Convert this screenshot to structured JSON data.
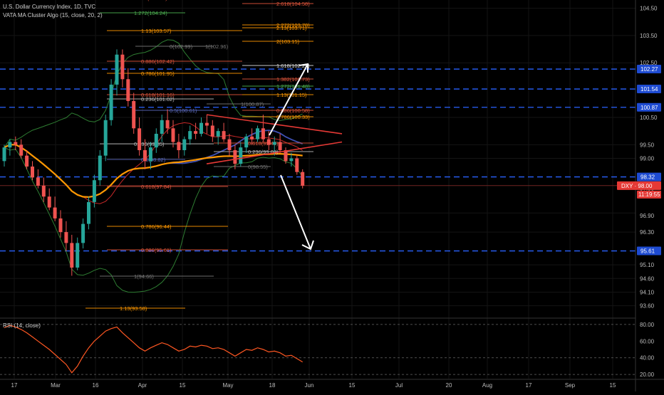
{
  "header": {
    "title": "U.S. Dollar Currency Index, 1D, TVC",
    "indicator": "VATA MA Cluster Algo (15, close, 20, 2)"
  },
  "rsi_panel": {
    "label": "RSI (14, close)",
    "ticks": [
      "80.00",
      "60.00",
      "40.00",
      "20.00"
    ]
  },
  "price_axis": {
    "ticks": [
      "104.50",
      "103.50",
      "102.50",
      "100.50",
      "99.50",
      "99.00",
      "97.90",
      "96.90",
      "96.30",
      "95.10",
      "94.60",
      "94.10",
      "93.60"
    ],
    "horizontal_levels": [
      "102.27",
      "101.54",
      "100.87",
      "98.32",
      "95.61"
    ],
    "last_price_label": "DXY · 98.00",
    "countdown": "11:19:55"
  },
  "time_axis": {
    "ticks": [
      "17",
      "Mar",
      "16",
      "Apr",
      "15",
      "May",
      "18",
      "Jun",
      "15",
      "Jul",
      "20",
      "Aug",
      "17",
      "Sep",
      "15"
    ]
  },
  "fib_labels": [
    {
      "text": "1.618(104.79)",
      "color": "#e0553b"
    },
    {
      "text": "2.618(104.58)",
      "color": "#e0553b"
    },
    {
      "text": "1.272(104.24)",
      "color": "#4caf50"
    },
    {
      "text": "1.13(103.57)",
      "color": "#ff9800"
    },
    {
      "text": "2.272(103.78)",
      "color": "#ff9800"
    },
    {
      "text": "2.13(103.71)",
      "color": "#ff9800"
    },
    {
      "text": "0(102.99)",
      "color": "#777777"
    },
    {
      "text": "1(102.96)",
      "color": "#777777"
    },
    {
      "text": "2(103.15)",
      "color": "#ff9800"
    },
    {
      "text": "0.886(102.42)",
      "color": "#e0553b"
    },
    {
      "text": "1.618(102.27)",
      "color": "#dddddd"
    },
    {
      "text": "0.786(101.95)",
      "color": "#ff9800"
    },
    {
      "text": "1.382(101.73)",
      "color": "#e0553b"
    },
    {
      "text": "1.272(101.48)",
      "color": "#4caf50"
    },
    {
      "text": "0.236(101.02)",
      "color": "#bbbbbb"
    },
    {
      "text": "0.618(101.16)",
      "color": "#e0553b"
    },
    {
      "text": "1.13(101.15)",
      "color": "#ff9800"
    },
    {
      "text": "1(100.87)",
      "color": "#777777"
    },
    {
      "text": "0.5(100.61)",
      "color": "#5c6bc0"
    },
    {
      "text": "0.886(100.58)",
      "color": "#e0553b"
    },
    {
      "text": "0.786(100.33)",
      "color": "#ff9800"
    },
    {
      "text": "0.618(99.43)",
      "color": "#e0553b"
    },
    {
      "text": "0.236(99.35)",
      "color": "#bbbbbb"
    },
    {
      "text": "0.236(99.09)",
      "color": "#bbbbbb"
    },
    {
      "text": "0.5(98.82)",
      "color": "#5c6bc0"
    },
    {
      "text": "0(98.55)",
      "color": "#777777"
    },
    {
      "text": "0.618(97.84)",
      "color": "#e0553b"
    },
    {
      "text": "0.786(96.44)",
      "color": "#ff9800"
    },
    {
      "text": "0.886(95.61)",
      "color": "#e0553b"
    },
    {
      "text": "1(94.66)",
      "color": "#777777"
    },
    {
      "text": "1.13(93.58)",
      "color": "#ff9800"
    }
  ],
  "colors": {
    "background": "#000000",
    "up_candle": "#26a69a",
    "down_candle": "#ef5350",
    "level_line": "#2962ff",
    "band_green": "#2e7d32",
    "ma_orange": "#ff9800",
    "ma_red": "#c62828",
    "ma_blue": "#3f51b5",
    "rsi_line": "#ff5722",
    "price_label": "#e53935"
  },
  "chart_data": {
    "type": "candlestick",
    "title": "U.S. Dollar Currency Index, 1D, TVC",
    "series": [
      {
        "name": "U.S. Dollar Currency Index",
        "values": [
          [
            98.9,
            99.5,
            98.7,
            99.4
          ],
          [
            99.4,
            99.7,
            99.1,
            99.6
          ],
          [
            99.6,
            99.8,
            99.3,
            99.5
          ],
          [
            99.5,
            99.7,
            99.0,
            99.1
          ],
          [
            99.1,
            99.3,
            98.6,
            98.7
          ],
          [
            98.7,
            98.9,
            98.2,
            98.3
          ],
          [
            98.3,
            98.6,
            97.9,
            98.0
          ],
          [
            98.0,
            98.3,
            97.4,
            97.6
          ],
          [
            97.6,
            97.9,
            97.1,
            97.2
          ],
          [
            97.2,
            97.6,
            96.7,
            96.8
          ],
          [
            96.8,
            97.1,
            96.1,
            96.3
          ],
          [
            96.3,
            96.7,
            95.6,
            95.9
          ],
          [
            95.9,
            96.2,
            94.7,
            95.0
          ],
          [
            95.0,
            96.1,
            94.9,
            95.9
          ],
          [
            95.9,
            96.8,
            95.7,
            96.6
          ],
          [
            96.6,
            97.6,
            96.4,
            97.4
          ],
          [
            97.4,
            98.4,
            97.2,
            98.2
          ],
          [
            98.2,
            99.3,
            98.0,
            99.1
          ],
          [
            99.1,
            100.6,
            98.9,
            100.4
          ],
          [
            100.4,
            101.9,
            100.2,
            101.7
          ],
          [
            101.7,
            102.99,
            101.3,
            102.8
          ],
          [
            102.8,
            102.99,
            101.6,
            101.9
          ],
          [
            101.9,
            102.3,
            100.9,
            101.1
          ],
          [
            101.1,
            101.4,
            99.9,
            100.1
          ],
          [
            100.1,
            100.5,
            99.1,
            99.3
          ],
          [
            99.3,
            99.7,
            98.6,
            98.9
          ],
          [
            98.9,
            99.6,
            98.6,
            99.4
          ],
          [
            99.4,
            100.1,
            99.2,
            99.9
          ],
          [
            99.9,
            100.6,
            99.6,
            100.4
          ],
          [
            100.4,
            100.8,
            99.9,
            100.1
          ],
          [
            100.1,
            100.4,
            99.4,
            99.6
          ],
          [
            99.6,
            99.9,
            99.0,
            99.3
          ],
          [
            99.3,
            99.8,
            99.1,
            99.7
          ],
          [
            99.7,
            100.2,
            99.5,
            100.0
          ],
          [
            100.0,
            100.3,
            99.7,
            99.9
          ],
          [
            99.9,
            100.5,
            99.8,
            100.3
          ],
          [
            100.3,
            100.6,
            99.9,
            100.2
          ],
          [
            100.2,
            100.4,
            99.6,
            99.8
          ],
          [
            99.8,
            100.1,
            99.5,
            100.0
          ],
          [
            100.0,
            100.3,
            99.6,
            99.7
          ],
          [
            99.7,
            99.9,
            99.1,
            99.3
          ],
          [
            99.3,
            99.5,
            98.6,
            98.8
          ],
          [
            98.8,
            99.6,
            98.7,
            99.4
          ],
          [
            99.4,
            99.9,
            99.2,
            99.8
          ],
          [
            99.8,
            100.1,
            99.5,
            99.7
          ],
          [
            99.7,
            100.2,
            99.6,
            100.1
          ],
          [
            100.1,
            100.6,
            99.6,
            99.7
          ],
          [
            99.7,
            100.0,
            99.3,
            99.5
          ],
          [
            99.5,
            99.8,
            99.1,
            99.6
          ],
          [
            99.6,
            99.9,
            99.2,
            99.3
          ],
          [
            99.3,
            99.4,
            98.8,
            98.9
          ],
          [
            98.9,
            99.2,
            98.7,
            99.0
          ],
          [
            99.0,
            99.1,
            98.4,
            98.5
          ],
          [
            98.5,
            98.6,
            97.9,
            98.0
          ]
        ]
      },
      {
        "name": "RSI (14, close)",
        "values": [
          76,
          79,
          77,
          74,
          70,
          65,
          60,
          55,
          50,
          44,
          38,
          32,
          22,
          30,
          42,
          52,
          60,
          66,
          72,
          75,
          77,
          70,
          64,
          58,
          52,
          48,
          52,
          55,
          58,
          56,
          52,
          48,
          50,
          54,
          53,
          55,
          54,
          51,
          52,
          50,
          46,
          42,
          46,
          50,
          49,
          52,
          50,
          47,
          48,
          46,
          42,
          43,
          39,
          35
        ]
      }
    ],
    "xlabel": "",
    "ylabel": "",
    "ylim": [
      93.2,
      104.8
    ],
    "rsi_ylim": [
      15,
      85
    ]
  }
}
